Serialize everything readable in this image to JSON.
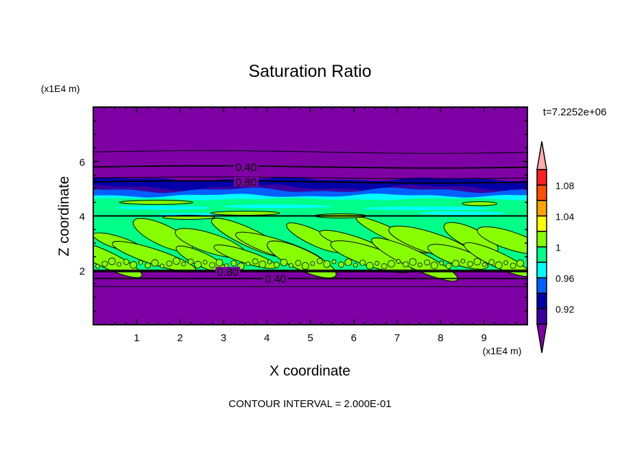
{
  "chart_data": {
    "type": "heatmap",
    "title": "Saturation Ratio",
    "xlabel": "X coordinate",
    "ylabel": "Z coordinate",
    "x_unit_label": "(x1E4 m)",
    "y_unit_label": "(x1E4 m)",
    "time_label": "t=7.2252e+06",
    "footer": "CONTOUR INTERVAL = 2.000E-01",
    "xlim": [
      0,
      10
    ],
    "ylim": [
      0,
      8
    ],
    "xticks": [
      1,
      2,
      3,
      4,
      5,
      6,
      7,
      8,
      9
    ],
    "yticks": [
      2,
      4,
      6
    ],
    "colorbar": {
      "levels": [
        0.9,
        0.92,
        0.94,
        0.96,
        0.98,
        1.0,
        1.02,
        1.04,
        1.06,
        1.08,
        1.1
      ],
      "colors": [
        "#3a00a0",
        "#0000a8",
        "#0060ff",
        "#00ffff",
        "#00ff88",
        "#88ff00",
        "#ffff00",
        "#ffa500",
        "#ff5000",
        "#ff2020"
      ],
      "under_color": "#7e00a5",
      "over_color": "#ffaaaa",
      "tick_labels": [
        {
          "value": 0.92,
          "label": "0.92"
        },
        {
          "value": 0.96,
          "label": "0.96"
        },
        {
          "value": 1.0,
          "label": "1"
        },
        {
          "value": 1.04,
          "label": "1.04"
        },
        {
          "value": 1.08,
          "label": "1.08"
        }
      ]
    },
    "contour_lines": [
      {
        "level": 0.4,
        "z": 5.8,
        "label": "0.40"
      },
      {
        "level": 0.8,
        "z": 5.25,
        "label": "0.80"
      },
      {
        "level": 0.8,
        "z": 1.95,
        "label": "0.80"
      },
      {
        "level": 0.4,
        "z": 1.7,
        "label": "0.40"
      }
    ],
    "regions": {
      "moist_layer_z": [
        2.0,
        4.6
      ],
      "dry_transition_z": [
        4.6,
        5.3
      ]
    }
  }
}
